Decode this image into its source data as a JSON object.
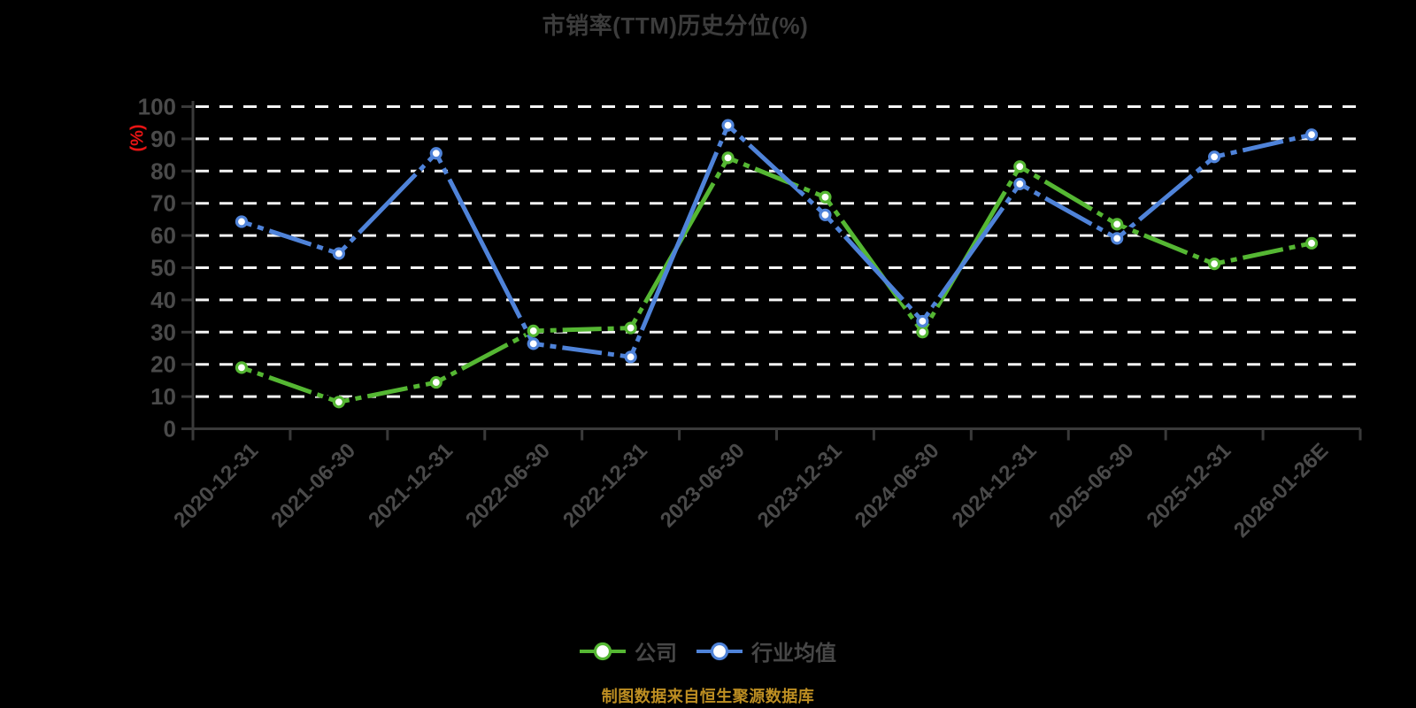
{
  "title": "市销率(TTM)历史分位(%)",
  "y_axis_label": "(%)",
  "source_note": "制图数据来自恒生聚源数据库",
  "colors": {
    "background": "#000000",
    "title_text": "#3c3c3c",
    "axis": "#3a3a3a",
    "tick_text": "#4a4a4a",
    "gridline": "#f5f5f5",
    "y_axis_unit_label": "#e81414",
    "source_note_text": "#bd8e22",
    "dash_overlay": "#000000",
    "marker_fill": "#ffffff"
  },
  "chart_data": {
    "type": "line",
    "title": "市销率(TTM)历史分位(%)",
    "xlabel": "",
    "ylabel": "(%)",
    "ylim": [
      0,
      100
    ],
    "ytick_step": 10,
    "grid": "horizontal-dashed-white",
    "legend_position": "bottom-center",
    "categories": [
      "2020-12-31",
      "2021-06-30",
      "2021-12-31",
      "2022-06-30",
      "2022-12-31",
      "2023-06-30",
      "2023-12-31",
      "2024-06-30",
      "2024-12-31",
      "2025-06-30",
      "2025-12-31",
      "2026-01-26E"
    ],
    "series": [
      {
        "name": "公司",
        "color": "#55b733",
        "marker": "circle-white-fill",
        "values": [
          19.0,
          8.3,
          14.4,
          30.4,
          31.3,
          84.1,
          71.9,
          30.0,
          81.4,
          63.5,
          51.2,
          57.6
        ]
      },
      {
        "name": "行业均值",
        "color": "#4f83d9",
        "marker": "circle-white-fill",
        "values": [
          64.3,
          54.4,
          85.5,
          26.4,
          22.3,
          94.2,
          66.4,
          33.4,
          76.0,
          59.1,
          84.4,
          91.3
        ]
      }
    ]
  }
}
